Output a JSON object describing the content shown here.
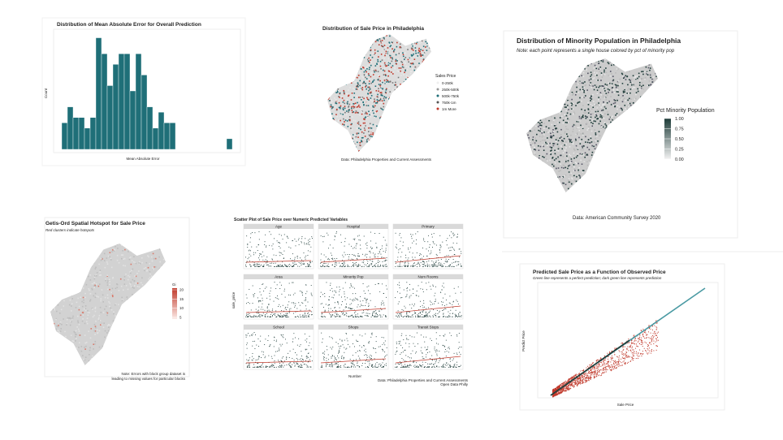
{
  "panels": [
    {
      "title": "Distribution of Mean Absolute Error for Overall Prediction",
      "x_label": "Mean Absolute Error",
      "y_label": "Count",
      "counts": [
        1,
        1.6,
        1.2,
        1.2,
        0.8,
        1.2,
        4.2,
        3.6,
        2.4,
        3.2,
        3.6,
        3.6,
        2.2,
        3.6,
        2.8,
        1.6,
        0.8,
        1.4,
        1,
        1,
        0,
        0,
        0,
        0,
        0,
        0,
        0,
        0,
        0,
        0.4
      ],
      "ylim": [
        0,
        4.4
      ],
      "color": "#1f6f78"
    },
    {
      "title": "Distribution of Sale Price in Philadelphia",
      "legend_title": "Sales Price",
      "legend": [
        "0-250k",
        "250k-500k",
        "500k-750k",
        "750k-1m",
        "1m More"
      ],
      "caption": "Data: Philadelphia Properties and Current Assessments"
    },
    {
      "title": "Distribution of Minority Population in Philadelphia",
      "subtitle": "Note: each point represents a single house colored by pct of minority pop",
      "legend_title": "Pct Minority Population",
      "legend_ticks": [
        {
          "value": 1,
          "label": "1.00"
        },
        {
          "value": 0.75,
          "label": "0.75"
        },
        {
          "value": 0.5,
          "label": "0.50"
        },
        {
          "value": 0.25,
          "label": "0.25"
        },
        {
          "value": 0,
          "label": "0.00"
        }
      ],
      "caption": "Data: American Community Survey 2020"
    },
    {
      "title": "Getis-Ord Spatial Hotspot for Sale Price",
      "subtitle": "Red clusters indicate hotspots",
      "legend_title": "Gi",
      "legend_ticks": [
        20,
        15,
        10,
        5
      ],
      "caption": [
        "Note: Errors with block group dataset is",
        "leading to missing values for particular blocks"
      ]
    },
    {
      "title": "Scatter Plot of Sale Price over Numeric Predicted Variables",
      "facets": [
        "Age",
        "Hospital",
        "Primary",
        "Area",
        "Minority Pop",
        "Num Rooms",
        "School",
        "Shops",
        "Transit Stops"
      ],
      "y_label": "sale_price",
      "x_label": "Number",
      "caption": [
        "Data: Philadelphia Properties and Current Assessments",
        "Open Data Philly"
      ]
    },
    {
      "title": "Predicted Sale Price as a Function of Observed Price",
      "subtitle": "Green line represents a perfect prediction; dark green line represents prediction",
      "y_label": "Predict Price",
      "x_label": "Sale Price"
    }
  ]
}
